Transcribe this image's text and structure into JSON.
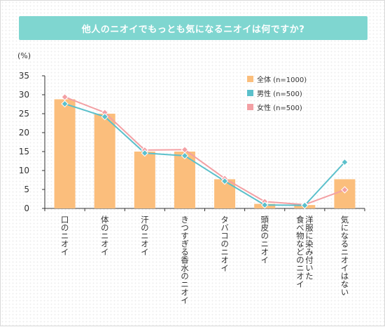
{
  "title": "他人のニオイでもっとも気になるニオイは何ですか?",
  "chart_data": {
    "type": "bar",
    "unit_label": "(%)",
    "ylim": [
      0,
      35
    ],
    "yticks": [
      0,
      5,
      10,
      15,
      20,
      25,
      30,
      35
    ],
    "grid": false,
    "legend_position": "top-right",
    "categories": [
      "口のニオイ",
      "体のニオイ",
      "汗のニオイ",
      "きつすぎる香水のニオイ",
      "タバコのニオイ",
      "頭皮のニオイ",
      "洋服に染み付いた 食べ物などのニオイ",
      "気になるニオイはない"
    ],
    "series": [
      {
        "name": "全体 (n=1000)",
        "type": "bar",
        "color": "#fbbe7c",
        "values": [
          28.8,
          25.0,
          15.0,
          15.0,
          7.7,
          1.2,
          0.9,
          7.7
        ]
      },
      {
        "name": "男性 (n=500)",
        "type": "line",
        "color": "#5bc0cb",
        "values": [
          27.6,
          24.2,
          14.6,
          13.9,
          7.2,
          0.9,
          0.8,
          12.2
        ]
      },
      {
        "name": "女性 (n=500)",
        "type": "line",
        "color": "#f3a0a4",
        "values": [
          29.4,
          25.3,
          15.4,
          15.5,
          7.9,
          1.8,
          1.0,
          4.9
        ]
      }
    ]
  }
}
